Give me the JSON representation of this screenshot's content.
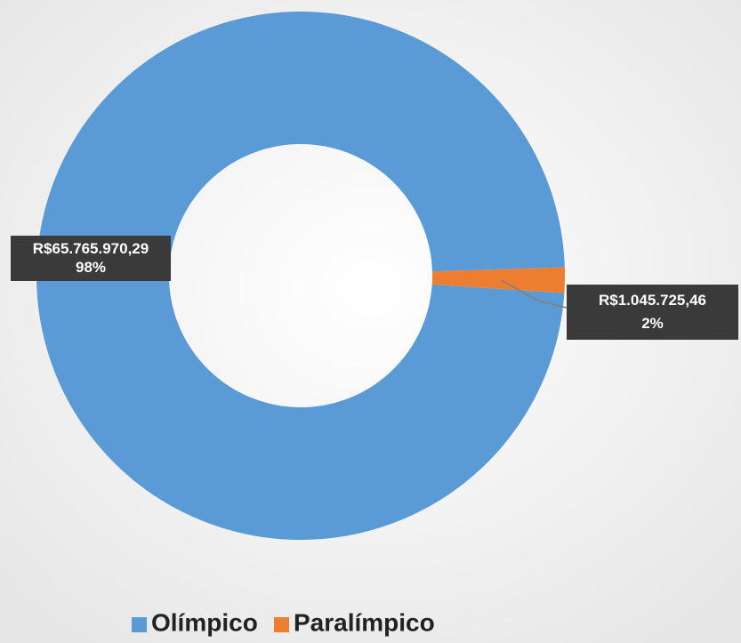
{
  "chart_data": {
    "type": "donut",
    "categories": [
      "Olímpico",
      "Paralímpico"
    ],
    "values": [
      65765970.29,
      1045725.46
    ],
    "value_labels": [
      "R$65.765.970,29",
      "R$1.045.725,46"
    ],
    "percents": [
      98,
      2
    ],
    "percent_labels": [
      "98%",
      "2%"
    ],
    "colors": [
      "#5b9bd5",
      "#ed7d31"
    ],
    "legend": "bottom"
  }
}
